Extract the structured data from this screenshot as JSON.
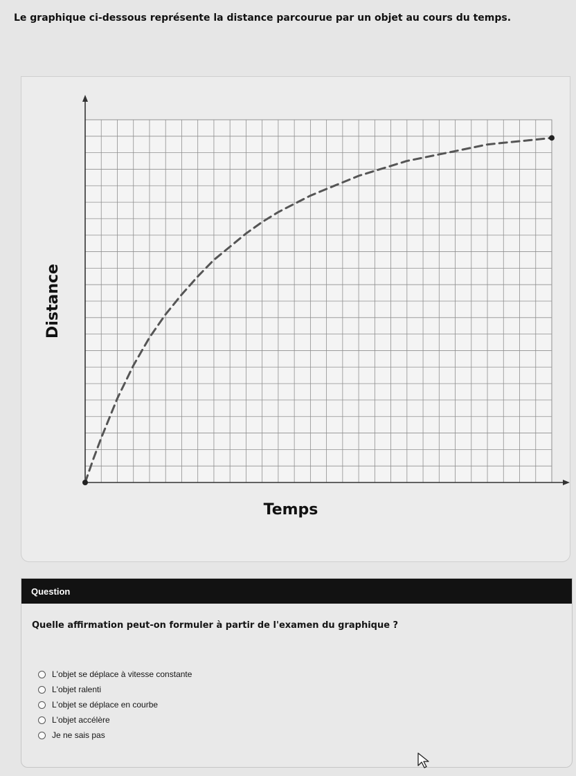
{
  "prompt": "Le graphique ci-dessous représente la distance parcourue par un objet au cours du temps.",
  "chart_data": {
    "type": "line",
    "title": "",
    "xlabel": "Temps",
    "ylabel": "Distance",
    "xlim": [
      0,
      29
    ],
    "ylim": [
      0,
      22
    ],
    "grid": true,
    "series": [
      {
        "style": "dashed",
        "color": "#555555",
        "x": [
          0,
          0.5,
          1,
          2,
          3,
          4,
          5,
          6,
          7,
          8,
          9,
          10,
          11,
          12,
          13,
          14,
          15,
          16,
          17,
          18,
          19,
          20,
          21,
          22,
          23,
          24,
          25,
          26,
          27,
          28,
          29
        ],
        "y": [
          0,
          1.4,
          2.7,
          5.1,
          7.1,
          8.8,
          10.2,
          11.4,
          12.5,
          13.5,
          14.3,
          15.1,
          15.8,
          16.4,
          16.9,
          17.4,
          17.8,
          18.2,
          18.6,
          18.9,
          19.2,
          19.5,
          19.7,
          19.9,
          20.1,
          20.3,
          20.5,
          20.6,
          20.7,
          20.8,
          20.9
        ]
      }
    ]
  },
  "question": {
    "header": "Question",
    "text": "Quelle affirmation peut-on formuler à partir de l'examen du graphique ?",
    "options": [
      "L'objet se déplace à vitesse constante",
      "L'objet ralenti",
      "L'objet se déplace en courbe",
      "L'objet accélère",
      "Je ne sais pas"
    ]
  },
  "icons": {
    "cursor": "mouse-pointer-icon"
  }
}
